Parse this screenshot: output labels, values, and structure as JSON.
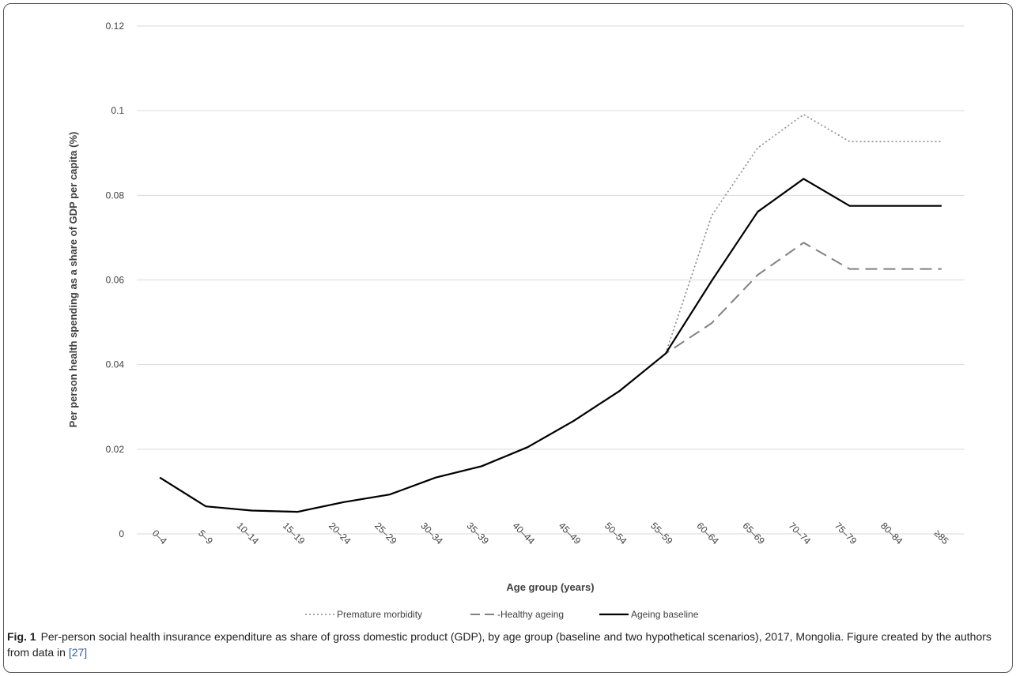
{
  "chart_data": {
    "type": "line",
    "xlabel": "Age group (years)",
    "ylabel": "Per person health spending as a share of GDP per capita (%)",
    "categories": [
      "0–4",
      "5–9",
      "10–14",
      "15–19",
      "20–24",
      "25–29",
      "30–34",
      "35–39",
      "40–44",
      "45–49",
      "50–54",
      "55–59",
      "60–64",
      "65–69",
      "70–74",
      "75–79",
      "80–84",
      "≥85"
    ],
    "ylim": [
      0,
      0.12
    ],
    "yticks": [
      "0",
      "0.02",
      "0.04",
      "0.06",
      "0.08",
      "0.1",
      "0.12"
    ],
    "ytick_values": [
      0,
      0.02,
      0.04,
      0.06,
      0.08,
      0.1,
      0.12
    ],
    "grid": true,
    "legend_position": "bottom",
    "series": [
      {
        "name": "Premature morbidity",
        "style": "dotted",
        "color": "#8c8c8c",
        "values": [
          0.0133,
          0.0065,
          0.0055,
          0.0052,
          0.0075,
          0.0093,
          0.0133,
          0.016,
          0.0205,
          0.0267,
          0.0338,
          0.0426,
          0.0752,
          0.0912,
          0.0991,
          0.0927,
          0.0927,
          0.0927
        ]
      },
      {
        "name": "-Healthy ageing",
        "style": "dashed",
        "color": "#808080",
        "values": [
          0.0133,
          0.0065,
          0.0055,
          0.0052,
          0.0075,
          0.0093,
          0.0133,
          0.016,
          0.0205,
          0.0267,
          0.0338,
          0.0426,
          0.0498,
          0.0612,
          0.0688,
          0.0626,
          0.0626,
          0.0626
        ]
      },
      {
        "name": "Ageing baseline",
        "style": "solid",
        "color": "#000000",
        "values": [
          0.0133,
          0.0065,
          0.0055,
          0.0052,
          0.0075,
          0.0093,
          0.0133,
          0.016,
          0.0205,
          0.0267,
          0.0338,
          0.0426,
          0.0598,
          0.0761,
          0.0839,
          0.0775,
          0.0775,
          0.0775
        ]
      }
    ]
  },
  "caption": {
    "label": "Fig. 1",
    "text": "Per-person social health insurance expenditure as share of gross domestic product (GDP), by age group (baseline and two hypothetical scenarios), 2017, Mongolia. Figure created by the authors from data in ",
    "ref": "[27]"
  }
}
